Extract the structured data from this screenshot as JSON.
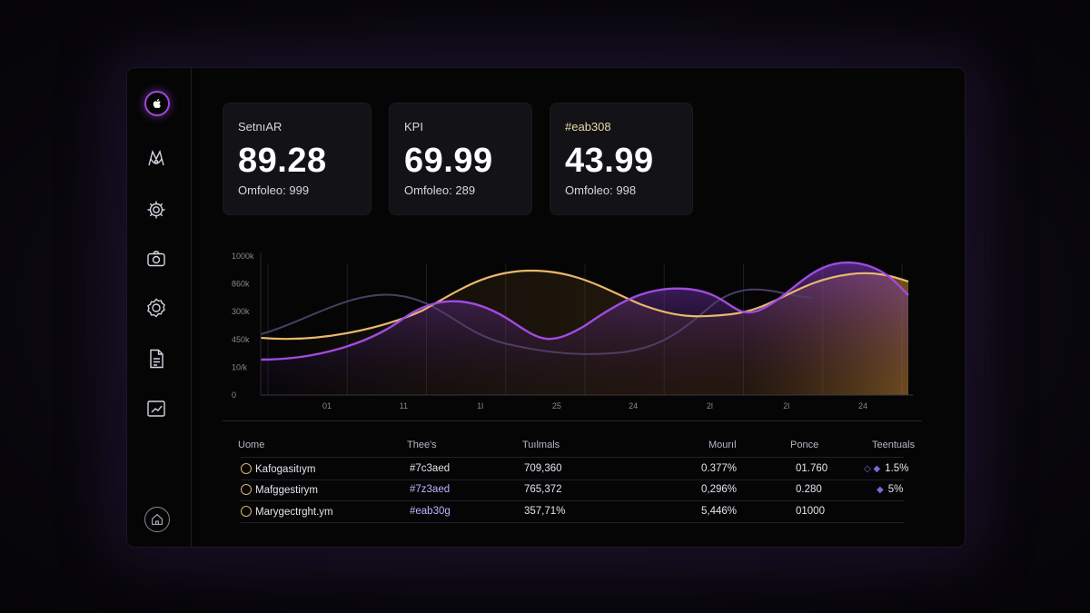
{
  "sidebar": {
    "icons": [
      "apple-icon",
      "brain-icon",
      "gear-icon",
      "camera-icon",
      "badge-icon",
      "document-icon",
      "chart-icon",
      "home-icon"
    ]
  },
  "kpis": [
    {
      "label": "SetnıAR",
      "value": "89.28",
      "sub": "Omfoleo: 999"
    },
    {
      "label": "KPI",
      "value": "69.99",
      "sub": "Omfoleo: 289"
    },
    {
      "label": "#eab308",
      "value": "43.99",
      "sub": "Omfoleo: 998"
    }
  ],
  "chart_data": {
    "type": "area",
    "y_ticks": [
      "1000k",
      "860k",
      "300k",
      "450k",
      "10/k",
      "0"
    ],
    "x_ticks": [
      "01",
      "11",
      "1l",
      "25",
      "24",
      "2l",
      "2l",
      "24"
    ],
    "series": [
      {
        "color": "#eab308"
      },
      {
        "color": "#a855f7"
      },
      {
        "color": "#5b4a78"
      }
    ],
    "colors": {
      "gold": "#e8b86a",
      "purple": "#a04be0",
      "muted": "#4a3b63"
    }
  },
  "table": {
    "headers": [
      "Uome",
      "Thee's",
      "Tuılmals",
      "Mourıl",
      "Ponce",
      "Teentuals"
    ],
    "rows": [
      {
        "name": "Kafogasitıym",
        "hex": "#7c3aed",
        "total": "709,360",
        "pct": "0.377%",
        "pair": "01.760",
        "trend": "1.5%"
      },
      {
        "name": "Mafggestirym",
        "hex": "#7z3aed",
        "total": "765,372",
        "pct": "0,296%",
        "pair": "0.280",
        "trend": "5%"
      },
      {
        "name": "Marygectrght.ym",
        "hex": "#eab30g",
        "total": "357,71%",
        "pct": "5,446%",
        "pair": "01000",
        "trend": ""
      }
    ]
  }
}
